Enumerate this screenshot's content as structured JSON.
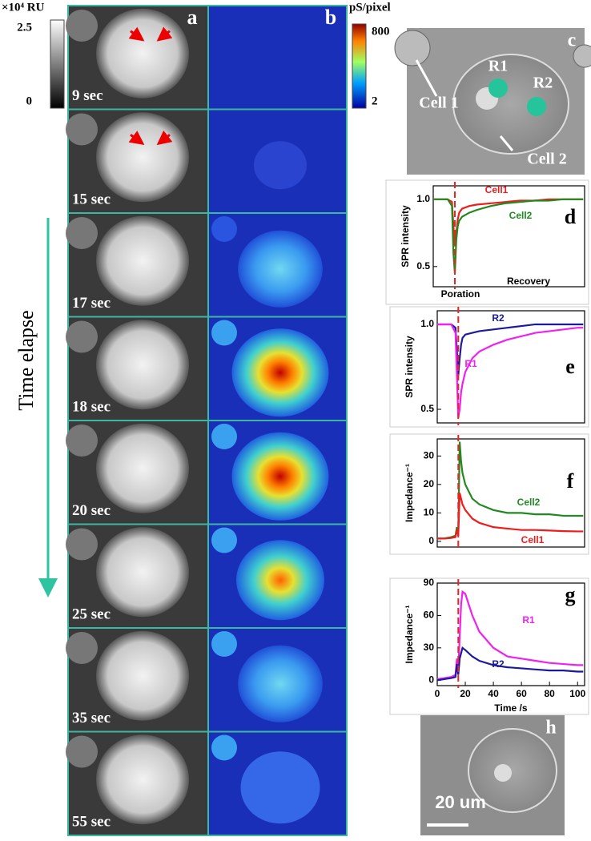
{
  "panels": {
    "a": {
      "letter": "a",
      "times": [
        "9 sec",
        "15 sec",
        "17 sec",
        "18 sec",
        "20 sec",
        "25 sec",
        "35 sec",
        "55 sec"
      ],
      "colorbar": {
        "unit": "×10⁴ RU",
        "lim": [
          0,
          2.5
        ],
        "ticks": [
          2.5,
          0
        ]
      }
    },
    "b": {
      "letter": "b",
      "colorbar": {
        "unit": "pS/pixel",
        "lim": [
          2,
          800
        ],
        "ticks": [
          800,
          2
        ]
      }
    },
    "c": {
      "letter": "c",
      "labels": [
        "R1",
        "R2",
        "Cell 1",
        "Cell 2"
      ]
    },
    "h": {
      "letter": "h",
      "scale_bar": "20 um"
    },
    "time_arrow": "Time elapse"
  },
  "chart_data": [
    {
      "type": "line",
      "panel": "d",
      "ylabel": "SPR intensity",
      "xlim": [
        0,
        105
      ],
      "ylim": [
        0.35,
        1.1
      ],
      "yticks": [
        0.5,
        {
          "value": 1,
          "label": "1.0"
        }
      ],
      "vline": 15,
      "annotations": [
        "Poration",
        "Recovery"
      ],
      "x": [
        0,
        5,
        10,
        13,
        14,
        15,
        16,
        17,
        18,
        20,
        25,
        30,
        40,
        50,
        60,
        70,
        80,
        90,
        100,
        104
      ],
      "series": [
        {
          "name": "Cell1",
          "color": "#ee1c1c",
          "values": [
            1,
            1,
            1,
            0.98,
            0.8,
            0.65,
            0.75,
            0.85,
            0.9,
            0.93,
            0.95,
            0.96,
            0.97,
            0.98,
            0.99,
            0.99,
            1,
            1,
            1,
            1
          ]
        },
        {
          "name": "Cell2",
          "color": "#1f8a1f",
          "values": [
            1,
            1,
            1,
            0.95,
            0.6,
            0.45,
            0.7,
            0.8,
            0.84,
            0.87,
            0.9,
            0.92,
            0.95,
            0.97,
            0.98,
            0.99,
            0.99,
            1,
            1,
            1
          ]
        }
      ]
    },
    {
      "type": "line",
      "panel": "e",
      "ylabel": "SPR intensity",
      "xlim": [
        0,
        105
      ],
      "ylim": [
        0.42,
        1.08
      ],
      "yticks": [
        0.5,
        {
          "value": 1,
          "label": "1.0"
        }
      ],
      "vline": 15,
      "x": [
        0,
        5,
        10,
        13,
        14,
        15,
        16,
        17,
        18,
        20,
        25,
        30,
        40,
        50,
        60,
        70,
        80,
        90,
        100,
        104
      ],
      "series": [
        {
          "name": "R2",
          "color": "#1a1a9e",
          "values": [
            1,
            1,
            1,
            0.98,
            0.85,
            0.7,
            0.8,
            0.88,
            0.92,
            0.94,
            0.95,
            0.96,
            0.97,
            0.98,
            0.99,
            1,
            1,
            1,
            1,
            1
          ]
        },
        {
          "name": "R1",
          "color": "#ee22ee",
          "values": [
            1,
            1,
            1,
            0.95,
            0.7,
            0.45,
            0.5,
            0.6,
            0.65,
            0.72,
            0.8,
            0.84,
            0.88,
            0.91,
            0.93,
            0.95,
            0.96,
            0.97,
            0.98,
            0.98
          ]
        }
      ]
    },
    {
      "type": "line",
      "panel": "f",
      "ylabel": "Impedance⁻¹",
      "xlim": [
        0,
        105
      ],
      "ylim": [
        -2,
        36
      ],
      "yticks": [
        0,
        10,
        20,
        30
      ],
      "vline": 15,
      "x": [
        0,
        5,
        10,
        13,
        14,
        15,
        16,
        17,
        18,
        20,
        25,
        30,
        40,
        50,
        60,
        70,
        80,
        90,
        100,
        104
      ],
      "series": [
        {
          "name": "Cell2",
          "color": "#1f8a1f",
          "values": [
            1,
            1,
            1.5,
            2,
            5,
            3,
            35,
            28,
            24,
            20,
            15,
            13,
            11,
            10,
            10,
            9.5,
            9.5,
            9,
            9,
            9
          ]
        },
        {
          "name": "Cell1",
          "color": "#ee1c1c",
          "values": [
            1,
            1,
            1.2,
            1.5,
            4,
            2,
            17,
            15,
            13,
            11,
            8,
            6.5,
            5,
            4.5,
            4,
            4,
            3.8,
            3.6,
            3.5,
            3.5
          ]
        }
      ]
    },
    {
      "type": "line",
      "panel": "g",
      "ylabel": "Impedance⁻¹",
      "xlabel": "Time /s",
      "xlim": [
        0,
        105
      ],
      "ylim": [
        -5,
        90
      ],
      "yticks": [
        0,
        30,
        60,
        90
      ],
      "xticks": [
        0,
        20,
        40,
        60,
        80,
        100
      ],
      "vline": 15,
      "x": [
        0,
        5,
        10,
        13,
        14,
        15,
        16,
        17,
        18,
        20,
        25,
        30,
        40,
        50,
        60,
        70,
        80,
        90,
        100,
        104
      ],
      "series": [
        {
          "name": "R1",
          "color": "#ee22ee",
          "values": [
            1,
            2,
            3,
            5,
            20,
            10,
            40,
            70,
            82,
            80,
            60,
            45,
            30,
            22,
            20,
            18,
            16,
            15,
            14,
            14
          ]
        },
        {
          "name": "R2",
          "color": "#1a1a9e",
          "values": [
            0,
            1,
            2,
            3,
            15,
            5,
            20,
            25,
            30,
            28,
            22,
            18,
            14,
            12,
            11,
            10,
            9,
            9,
            8,
            8
          ]
        }
      ]
    }
  ]
}
